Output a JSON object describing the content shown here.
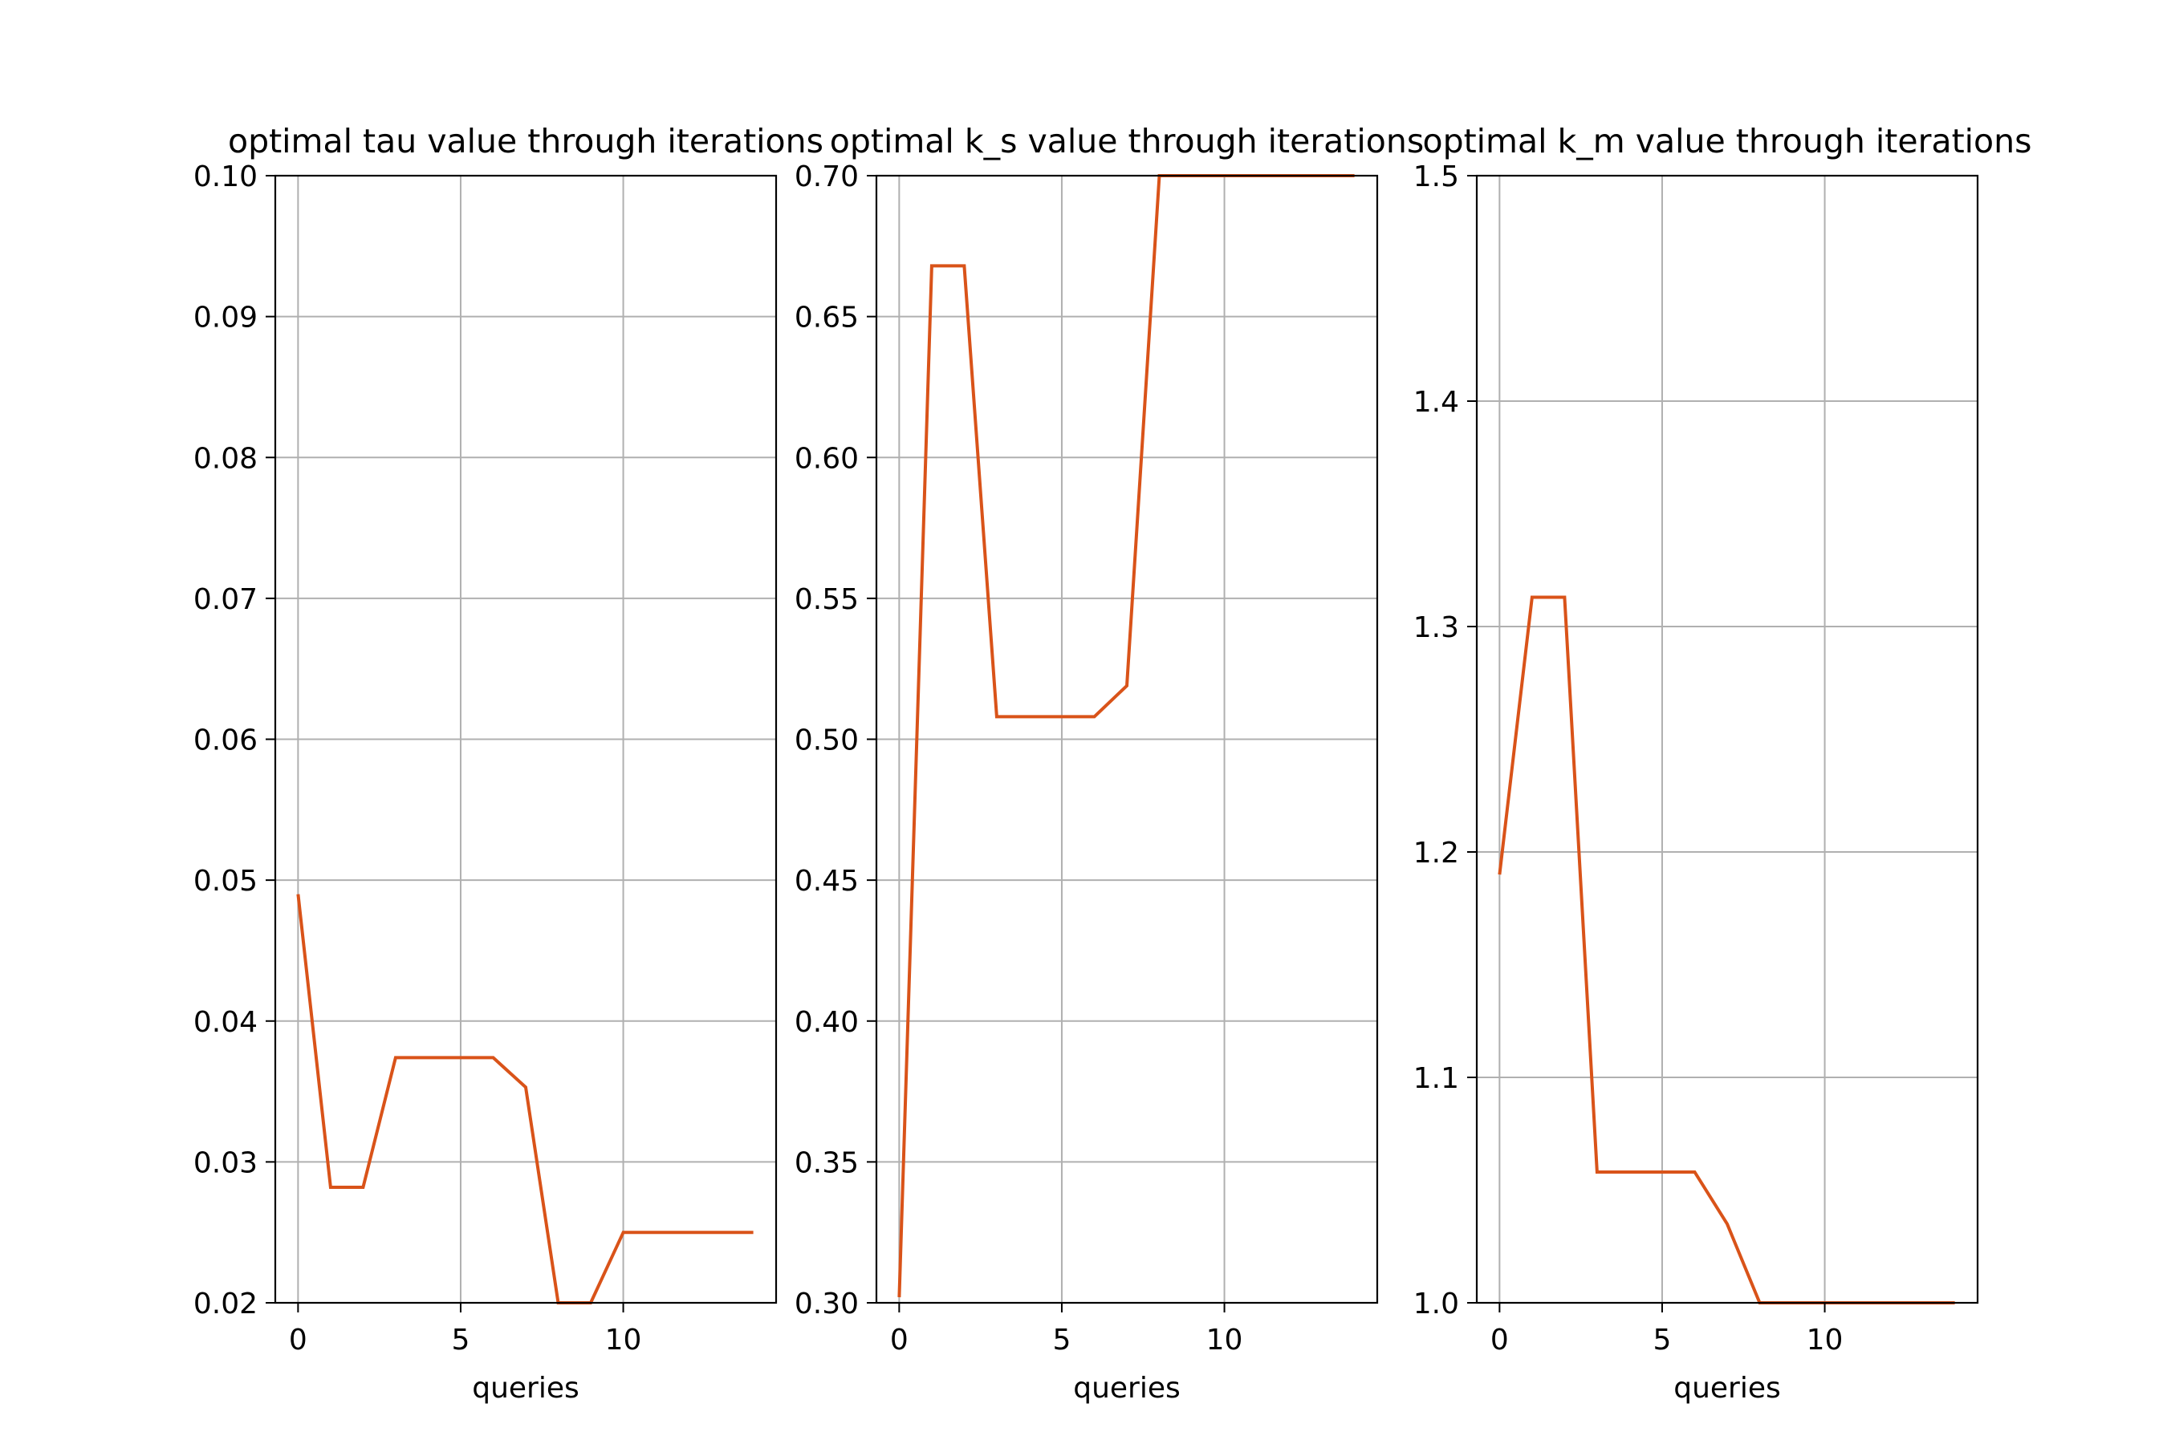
{
  "chart_data": [
    {
      "type": "line",
      "title": "optimal tau value through iterations",
      "xlabel": "queries",
      "ylabel": "",
      "xlim": [
        -0.7,
        14.7
      ],
      "ylim": [
        0.02,
        0.1
      ],
      "xticks": [
        0,
        5,
        10
      ],
      "xtick_labels": [
        "0",
        "5",
        "10"
      ],
      "yticks": [
        0.02,
        0.03,
        0.04,
        0.05,
        0.06,
        0.07,
        0.08,
        0.09,
        0.1
      ],
      "ytick_labels": [
        "0.02",
        "0.03",
        "0.04",
        "0.05",
        "0.06",
        "0.07",
        "0.08",
        "0.09",
        "0.10"
      ],
      "grid": true,
      "series": [
        {
          "color": "#d95319",
          "x": [
            0,
            1,
            2,
            3,
            4,
            5,
            6,
            7,
            8,
            9,
            10,
            11,
            12,
            13,
            14
          ],
          "values": [
            0.049,
            0.0282,
            0.0282,
            0.0374,
            0.0374,
            0.0374,
            0.0374,
            0.0353,
            0.02,
            0.02,
            0.025,
            0.025,
            0.025,
            0.025,
            0.025
          ]
        }
      ]
    },
    {
      "type": "line",
      "title": "optimal k_s value through iterations",
      "xlabel": "queries",
      "ylabel": "",
      "xlim": [
        -0.7,
        14.7
      ],
      "ylim": [
        0.3,
        0.7
      ],
      "xticks": [
        0,
        5,
        10
      ],
      "xtick_labels": [
        "0",
        "5",
        "10"
      ],
      "yticks": [
        0.3,
        0.35,
        0.4,
        0.45,
        0.5,
        0.55,
        0.6,
        0.65,
        0.7
      ],
      "ytick_labels": [
        "0.30",
        "0.35",
        "0.40",
        "0.45",
        "0.50",
        "0.55",
        "0.60",
        "0.65",
        "0.70"
      ],
      "grid": true,
      "series": [
        {
          "color": "#d95319",
          "x": [
            0,
            1,
            2,
            3,
            4,
            5,
            6,
            7,
            8,
            9,
            10,
            11,
            12,
            13,
            14
          ],
          "values": [
            0.302,
            0.668,
            0.668,
            0.508,
            0.508,
            0.508,
            0.508,
            0.519,
            0.7,
            0.7,
            0.7,
            0.7,
            0.7,
            0.7,
            0.7
          ]
        }
      ]
    },
    {
      "type": "line",
      "title": "optimal k_m value through iterations",
      "xlabel": "queries",
      "ylabel": "",
      "xlim": [
        -0.7,
        14.7
      ],
      "ylim": [
        1.0,
        1.5
      ],
      "xticks": [
        0,
        5,
        10
      ],
      "xtick_labels": [
        "0",
        "5",
        "10"
      ],
      "yticks": [
        1.0,
        1.1,
        1.2,
        1.3,
        1.4,
        1.5
      ],
      "ytick_labels": [
        "1.0",
        "1.1",
        "1.2",
        "1.3",
        "1.4",
        "1.5"
      ],
      "grid": true,
      "series": [
        {
          "color": "#d95319",
          "x": [
            0,
            1,
            2,
            3,
            4,
            5,
            6,
            7,
            8,
            9,
            10,
            11,
            12,
            13,
            14
          ],
          "values": [
            1.19,
            1.313,
            1.313,
            1.058,
            1.058,
            1.058,
            1.058,
            1.035,
            1.0,
            1.0,
            1.0,
            1.0,
            1.0,
            1.0,
            1.0
          ]
        }
      ]
    }
  ]
}
